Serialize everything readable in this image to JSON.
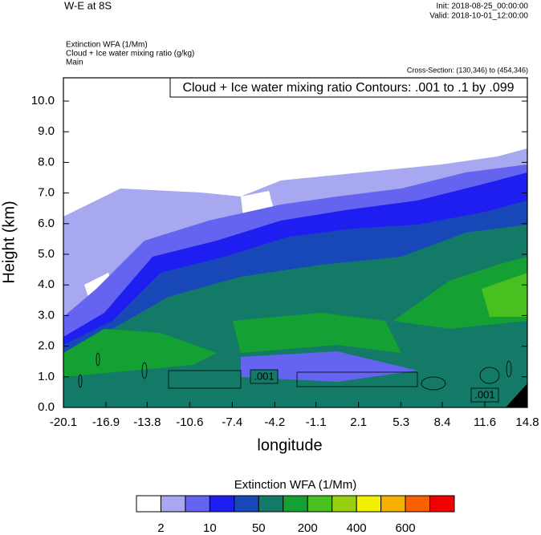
{
  "chart_data": {
    "type": "contour",
    "title": "W-E at 8S",
    "init": "Init: 2018-08-25_00:00:00",
    "valid": "Valid: 2018-10-01_12:00:00",
    "field_labels": [
      "Extinction WFA   (1/Mm)",
      "Cloud + Ice water mixing ratio   (g/kg)",
      "Main"
    ],
    "cross_section": "Cross-Section: (130,346) to (454,346)",
    "contour_info": "Cloud + Ice water mixing ratio Contours: .001 to .1 by .099",
    "xlabel": "longitude",
    "ylabel": "Height (km)",
    "xlim": [
      -20.1,
      14.8
    ],
    "ylim": [
      0,
      10.76
    ],
    "xticks": [
      -20.1,
      -16.9,
      -13.8,
      -10.6,
      -7.4,
      -4.2,
      -1.1,
      2.1,
      5.3,
      8.4,
      11.6,
      14.8
    ],
    "yticks": [
      {
        "value": 0,
        "label": "0.0"
      },
      {
        "value": 1,
        "label": "1.0"
      },
      {
        "value": 2,
        "label": "2.0"
      },
      {
        "value": 3,
        "label": "3.0"
      },
      {
        "value": 4,
        "label": "4.0"
      },
      {
        "value": 5,
        "label": "5.0"
      },
      {
        "value": 6,
        "label": "6.0"
      },
      {
        "value": 7,
        "label": "7.0"
      },
      {
        "value": 8,
        "label": "8.0"
      },
      {
        "value": 9,
        "label": "9.0"
      },
      {
        "value": 10,
        "label": "10.0"
      }
    ],
    "contour_labels": [
      ".001",
      ".001"
    ],
    "colorbar": {
      "title": "Extinction WFA  (1/Mm)",
      "colors": [
        "#ffffff",
        "#a8a8f0",
        "#6464f0",
        "#1e1ef0",
        "#1848b8",
        "#147a68",
        "#14a032",
        "#48c020",
        "#98d010",
        "#f0f000",
        "#f8b000",
        "#f86000",
        "#f00000"
      ],
      "labels": [
        2,
        10,
        50,
        200,
        400,
        600
      ]
    }
  }
}
